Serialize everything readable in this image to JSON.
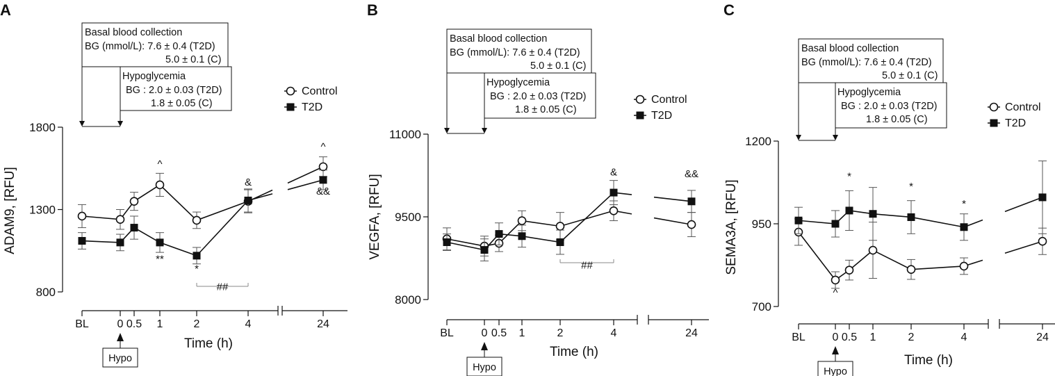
{
  "chart_data": [
    {
      "type": "line",
      "panel": "A",
      "ylabel": "ADAM9, [RFU]",
      "xlabel": "Time (h)",
      "ylim": [
        800,
        1800
      ],
      "yticks": [
        800,
        1300,
        1800
      ],
      "categories": [
        "BL",
        "0",
        "0.5",
        "1",
        "2",
        "4",
        "24"
      ],
      "x": [
        "BL",
        "0",
        "0.5",
        "1",
        "2",
        "4",
        "24"
      ],
      "hypo_label": "Hypo",
      "basal_box": [
        "Basal blood collection",
        "BG (mmol/L): 7.6 ± 0.4 (T2D)",
        "5.0 ± 0.1 (C)"
      ],
      "hypo_box": [
        "Hypoglycemia",
        "BG : 2.0 ± 0.03 (T2D)",
        "1.8 ± 0.05 (C)"
      ],
      "legend": [
        "Control",
        "T2D"
      ],
      "series": [
        {
          "name": "Control",
          "marker": "open-circle",
          "values": [
            1260,
            1240,
            1350,
            1450,
            1235,
            1350,
            1560
          ],
          "errors": [
            70,
            60,
            55,
            70,
            50,
            70,
            60
          ]
        },
        {
          "name": "T2D",
          "marker": "filled-square",
          "values": [
            1110,
            1100,
            1190,
            1100,
            1020,
            1355,
            1480
          ],
          "errors": [
            50,
            50,
            70,
            60,
            50,
            70,
            60
          ]
        }
      ],
      "annotations": [
        {
          "text": "^",
          "x": "1",
          "y": 1555
        },
        {
          "text": "**",
          "x": "1",
          "y": 980
        },
        {
          "text": "*",
          "x": "2",
          "y": 920
        },
        {
          "text": "&",
          "x": "4",
          "y": 1445
        },
        {
          "text": "^",
          "x": "24",
          "y": 1660
        },
        {
          "text": "&&",
          "x": "24",
          "y": 1390
        },
        {
          "text": "##",
          "x": "3",
          "y": 810
        }
      ]
    },
    {
      "type": "line",
      "panel": "B",
      "ylabel": "VEGFA, [RFU]",
      "xlabel": "Time (h)",
      "ylim": [
        8000,
        11000
      ],
      "yticks": [
        8000,
        9500,
        11000
      ],
      "categories": [
        "BL",
        "0",
        "0.5",
        "1",
        "2",
        "4",
        "24"
      ],
      "x": [
        "BL",
        "0",
        "0.5",
        "1",
        "2",
        "4",
        "24"
      ],
      "hypo_label": "Hypo",
      "basal_box": [
        "Basal blood collection",
        "BG (mmol/L): 7.6 ± 0.4 (T2D)",
        "5.0 ± 0.1 (C)"
      ],
      "hypo_box": [
        "Hypoglycemia",
        "BG : 2.0 ± 0.03 (T2D)",
        "1.8 ± 0.05 (C)"
      ],
      "legend": [
        "Control",
        "T2D"
      ],
      "series": [
        {
          "name": "Control",
          "marker": "open-circle",
          "values": [
            9100,
            8970,
            9020,
            9430,
            9330,
            9610,
            9360
          ],
          "errors": [
            200,
            180,
            150,
            180,
            250,
            180,
            220
          ]
        },
        {
          "name": "T2D",
          "marker": "filled-square",
          "values": [
            9040,
            8900,
            9190,
            9150,
            9040,
            9940,
            9780
          ],
          "errors": [
            150,
            200,
            200,
            200,
            220,
            220,
            200
          ]
        }
      ],
      "annotations": [
        {
          "text": "&",
          "x": "4",
          "y": 10250
        },
        {
          "text": "&&",
          "x": "24",
          "y": 10220
        },
        {
          "text": "##",
          "x": "3",
          "y": 8560
        }
      ]
    },
    {
      "type": "line",
      "panel": "C",
      "ylabel": "SEMA3A, [RFU]",
      "xlabel": "Time (h)",
      "ylim": [
        700,
        1200
      ],
      "yticks": [
        700,
        950,
        1200
      ],
      "categories": [
        "BL",
        "0",
        "0.5",
        "1",
        "2",
        "4",
        "24"
      ],
      "x": [
        "BL",
        "0",
        "0.5",
        "1",
        "2",
        "4",
        "24"
      ],
      "hypo_label": "Hypo",
      "basal_box": [
        "Basal blood collection",
        "BG (mmol/L): 7.6 ± 0.4 (T2D)",
        "5.0 ± 0.1 (C)"
      ],
      "hypo_box": [
        "Hypoglycemia",
        "BG : 2.0 ± 0.03 (T2D)",
        "1.8 ± 0.05 (C)"
      ],
      "legend": [
        "Control",
        "T2D"
      ],
      "series": [
        {
          "name": "Control",
          "marker": "open-circle",
          "values": [
            925,
            780,
            810,
            870,
            812,
            822,
            897
          ],
          "errors": [
            40,
            25,
            30,
            85,
            30,
            25,
            40
          ]
        },
        {
          "name": "T2D",
          "marker": "filled-square",
          "values": [
            960,
            950,
            990,
            980,
            970,
            940,
            1030
          ],
          "errors": [
            40,
            40,
            60,
            80,
            50,
            40,
            110
          ]
        }
      ],
      "annotations": [
        {
          "text": "*",
          "x": "0.5",
          "y": 1083
        },
        {
          "text": "*",
          "x": "2",
          "y": 1053
        },
        {
          "text": "*",
          "x": "4",
          "y": 1000
        },
        {
          "text": "^",
          "x": "0",
          "y": 732
        }
      ]
    }
  ]
}
